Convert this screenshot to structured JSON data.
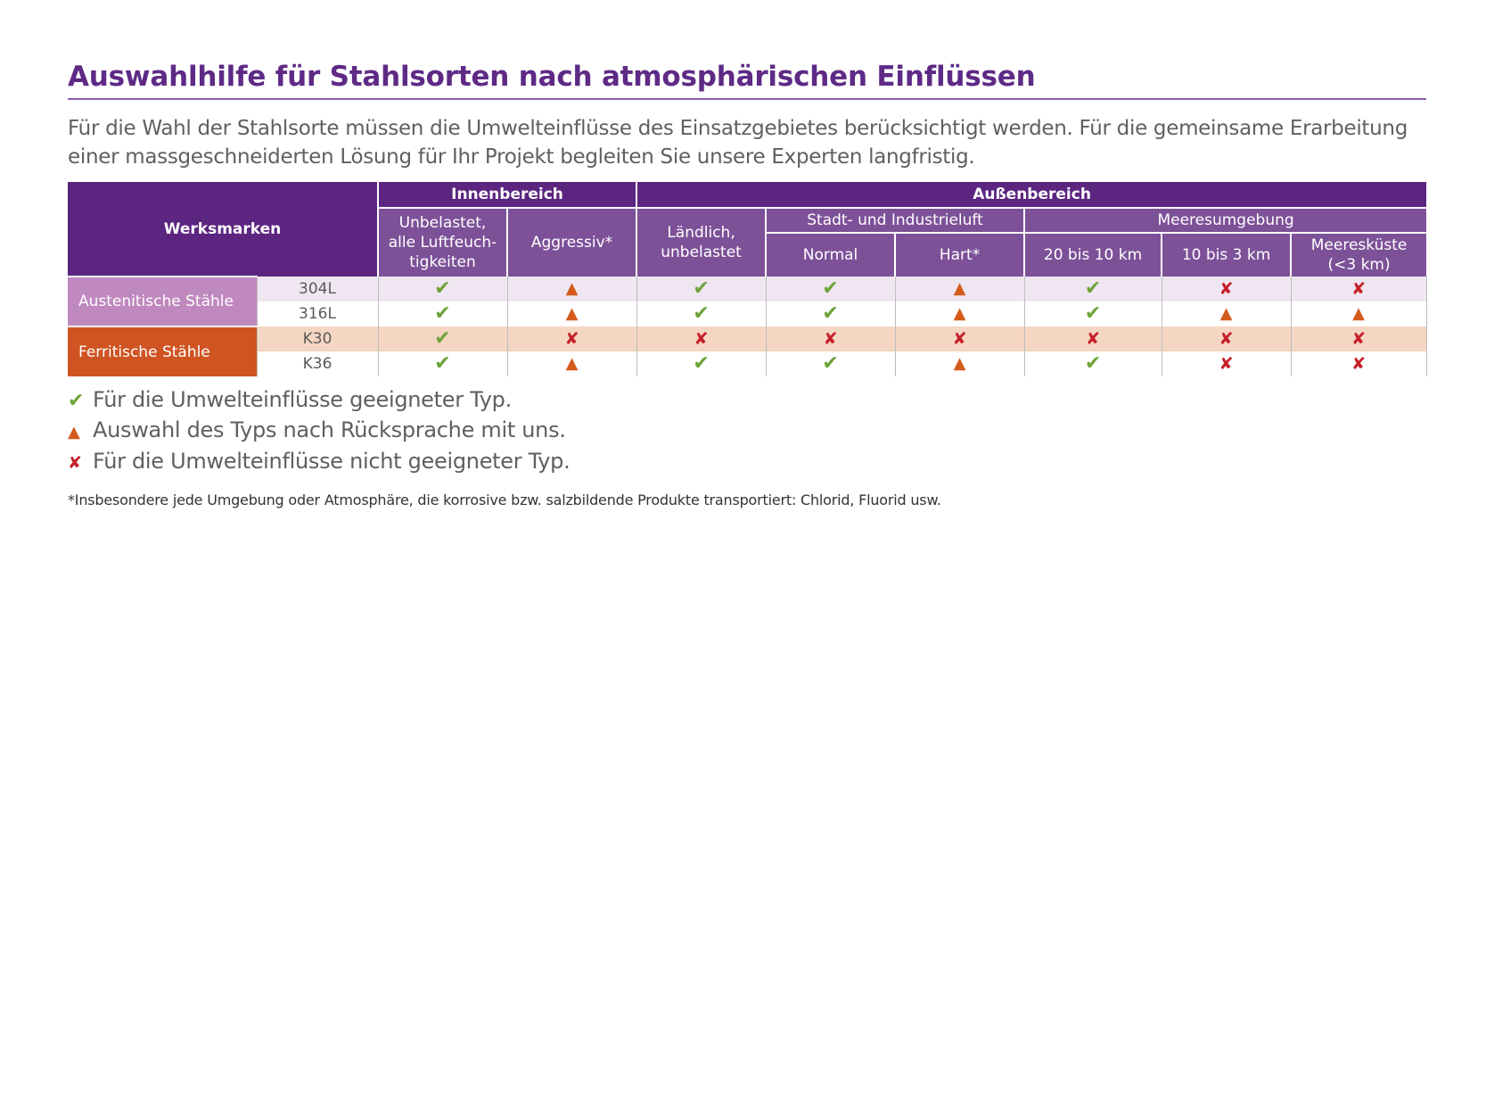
{
  "title": "Auswahlhilfe für Stahlsorten nach atmosphärischen Einflüssen",
  "intro": "Für die Wahl der Stahlsorte müssen die Umwelteinflüsse des Einsatzgebietes berücksichtigt werden. Für die gemeinsame Erarbeitung einer massgeschneiderten Lösung für Ihr Projekt begleiten Sie unsere Experten langfristig.",
  "table": {
    "corner_label": "Werksmarken",
    "group_headers": {
      "inside": "Innenbereich",
      "outside": "Außenbereich"
    },
    "sub_headers": {
      "city": "Stadt- und Industrieluft",
      "sea": "Meeresumgebung"
    },
    "columns": {
      "c1_line1": "Unbelastet,",
      "c1_line2": "alle Luftfeuch-",
      "c1_line3": "tigkeiten",
      "c2": "Aggressiv*",
      "c3_line1": "Ländlich,",
      "c3_line2": "unbelastet",
      "c4": "Normal",
      "c5": "Hart*",
      "c6": "20 bis 10 km",
      "c7": "10 bis 3 km",
      "c8_line1": "Meeresküste",
      "c8_line2": "(<3 km)"
    },
    "groups": {
      "austenitic": "Austenitische Stähle",
      "ferritic": "Ferritische Stähle"
    },
    "rows": [
      {
        "code": "304L",
        "values": [
          "check",
          "tri",
          "check",
          "check",
          "tri",
          "check",
          "cross",
          "cross"
        ]
      },
      {
        "code": "316L",
        "values": [
          "check",
          "tri",
          "check",
          "check",
          "tri",
          "check",
          "tri",
          "tri"
        ]
      },
      {
        "code": "K30",
        "values": [
          "check",
          "cross",
          "cross",
          "cross",
          "cross",
          "cross",
          "cross",
          "cross"
        ]
      },
      {
        "code": "K36",
        "values": [
          "check",
          "tri",
          "check",
          "check",
          "tri",
          "check",
          "cross",
          "cross"
        ]
      }
    ]
  },
  "symbols": {
    "check": "✔",
    "tri": "▲",
    "cross": "✘"
  },
  "colors": {
    "check": "#6ea33a",
    "tri": "#d45a1c",
    "cross": "#c6202a",
    "header": "#5c2580",
    "subheader": "#7d5198",
    "austenitic": "#bf88be",
    "ferritic": "#cf5422"
  },
  "legend": {
    "check": "Für die Umwelteinflüsse geeigneter Typ.",
    "tri": "Auswahl des Typs nach Rücksprache mit uns.",
    "cross": "Für die Umwelteinflüsse nicht geeigneter Typ."
  },
  "footnote": "*Insbesondere jede Umgebung oder Atmosphäre, die korrosive bzw. salzbildende Produkte transportiert: Chlorid, Fluorid usw."
}
